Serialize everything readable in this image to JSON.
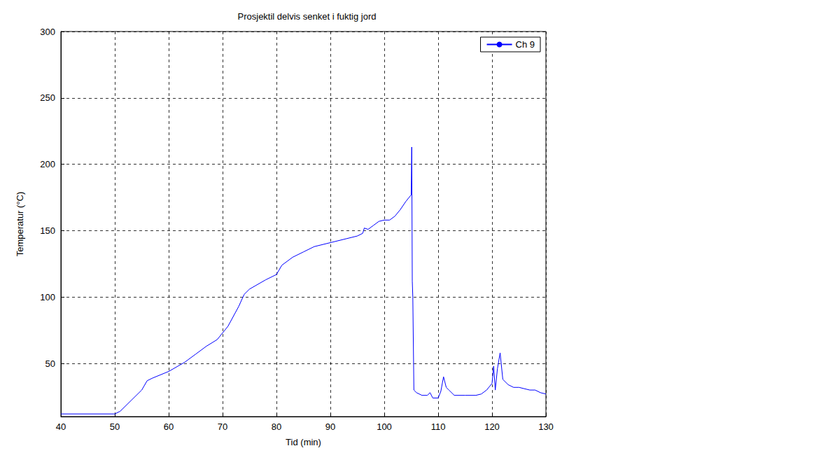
{
  "chart_data": {
    "type": "line",
    "title": "Prosjektil delvis senket i fuktig jord",
    "xlabel": "Tid (min)",
    "ylabel": "Temperatur (°C)",
    "x": [
      40,
      50,
      51,
      53,
      55,
      56,
      57,
      60,
      63,
      65,
      67,
      69,
      71,
      73,
      74,
      75,
      78,
      80,
      81,
      83,
      85,
      87,
      90,
      93,
      95,
      96,
      96.3,
      97,
      98,
      99,
      100,
      101,
      102,
      103,
      104,
      105,
      105.1,
      105.2,
      105.3,
      105.5,
      106,
      107,
      108,
      108.5,
      109,
      110,
      110.5,
      111,
      111.5,
      112,
      113,
      115,
      117,
      118,
      119,
      120,
      120.3,
      120.6,
      121,
      121.5,
      122,
      123,
      124,
      125,
      127,
      128,
      129,
      130
    ],
    "series": [
      {
        "name": "Ch 9",
        "color": "#0000ff",
        "line_style": "solid",
        "values": [
          12,
          12,
          14,
          22,
          30,
          37,
          39,
          44,
          51,
          57,
          63,
          68,
          78,
          93,
          102,
          106,
          113,
          117,
          124,
          130,
          134,
          138,
          141,
          144,
          146,
          148,
          152,
          151,
          154,
          157,
          158,
          158,
          161,
          166,
          172,
          177,
          213,
          112,
          100,
          30,
          28,
          26,
          26,
          28,
          24,
          24,
          29,
          40,
          32,
          30,
          26,
          26,
          26,
          27,
          30,
          35,
          48,
          30,
          46,
          58,
          38,
          34,
          32,
          32,
          30,
          30,
          28,
          27
        ]
      }
    ],
    "xlim": [
      40,
      130
    ],
    "xticks": [
      40,
      50,
      60,
      70,
      80,
      90,
      100,
      110,
      120,
      130
    ],
    "ylim": [
      10,
      300
    ],
    "yticks": [
      50,
      100,
      150,
      200,
      250,
      300
    ],
    "grid": true,
    "legend": "upper right"
  }
}
